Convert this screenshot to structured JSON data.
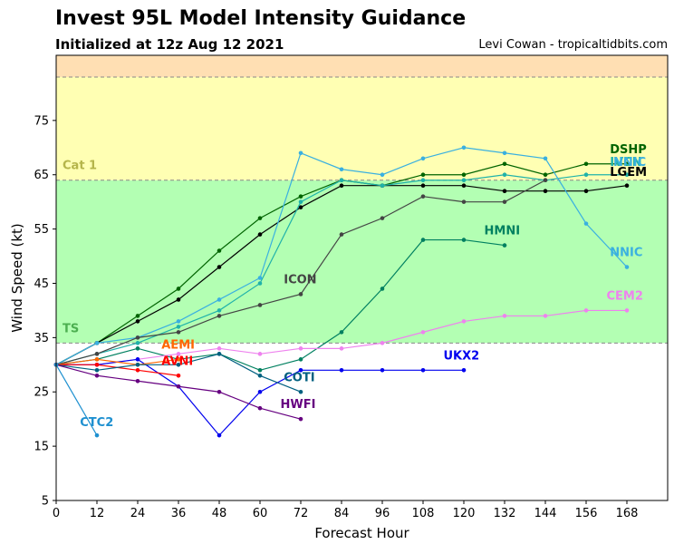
{
  "header": {
    "title": "Invest 95L Model Intensity Guidance",
    "subtitle": "Initialized at 12z Aug 12 2021",
    "credit": "Levi Cowan - tropicaltidbits.com"
  },
  "chart_data": {
    "type": "line",
    "xlabel": "Forecast Hour",
    "ylabel": "Wind Speed (kt)",
    "xlim": [
      0,
      180
    ],
    "ylim": [
      5,
      87
    ],
    "xticks": [
      0,
      12,
      24,
      36,
      48,
      60,
      72,
      84,
      96,
      108,
      120,
      132,
      144,
      156,
      168
    ],
    "yticks": [
      5,
      15,
      25,
      35,
      45,
      55,
      65,
      75
    ],
    "grid": false,
    "bands": [
      {
        "name": "TS",
        "from": 34,
        "to": 64,
        "color": "#b3ffb3",
        "label_color": "#4caf50"
      },
      {
        "name": "Cat 1",
        "from": 64,
        "to": 83,
        "color": "#ffffb3",
        "label_color": "#b5b54a"
      },
      {
        "name": "",
        "from": 83,
        "to": 87,
        "color": "#ffdfb3",
        "label_color": "#000000"
      }
    ],
    "series": [
      {
        "name": "DSHP",
        "color": "#006400",
        "x": [
          0,
          12,
          24,
          36,
          48,
          60,
          72,
          84,
          96,
          108,
          120,
          132,
          144,
          156,
          168
        ],
        "y": [
          30,
          34,
          39,
          44,
          51,
          57,
          61,
          64,
          63,
          65,
          65,
          67,
          65,
          67,
          67
        ]
      },
      {
        "name": "LGEM",
        "color": "#000000",
        "x": [
          0,
          12,
          24,
          36,
          48,
          60,
          72,
          84,
          96,
          108,
          120,
          132,
          144,
          156,
          168
        ],
        "y": [
          30,
          34,
          38,
          42,
          48,
          54,
          59,
          63,
          63,
          63,
          63,
          62,
          62,
          62,
          63
        ]
      },
      {
        "name": "IVCN",
        "color": "#20b2aa",
        "x": [
          0,
          12,
          24,
          36,
          48,
          60,
          72,
          84,
          96,
          108,
          120,
          132,
          144,
          156,
          168
        ],
        "y": [
          30,
          32,
          34,
          37,
          40,
          45,
          60,
          64,
          63,
          64,
          64,
          65,
          64,
          65,
          65
        ]
      },
      {
        "name": "NNIC",
        "color": "#3ab0e0",
        "x": [
          0,
          12,
          24,
          36,
          48,
          60,
          72,
          84,
          96,
          108,
          120,
          132,
          144,
          156,
          168
        ],
        "y": [
          30,
          34,
          35,
          38,
          42,
          46,
          69,
          66,
          65,
          68,
          70,
          69,
          68,
          56,
          48
        ]
      },
      {
        "name": "ICON",
        "color": "#444444",
        "x": [
          0,
          12,
          24,
          36,
          48,
          60,
          72,
          84,
          96,
          108,
          120,
          132,
          144
        ],
        "y": [
          30,
          32,
          35,
          36,
          39,
          41,
          43,
          54,
          57,
          61,
          60,
          60,
          64
        ]
      },
      {
        "name": "HMNI",
        "color": "#008060",
        "x": [
          0,
          12,
          24,
          36,
          48,
          60,
          72,
          84,
          96,
          108,
          120,
          132
        ],
        "y": [
          30,
          31,
          33,
          31,
          32,
          29,
          31,
          36,
          44,
          53,
          53,
          52
        ]
      },
      {
        "name": "CEM2",
        "color": "#ee82ee",
        "x": [
          0,
          12,
          24,
          36,
          48,
          60,
          72,
          84,
          96,
          108,
          120,
          132,
          144,
          156,
          168
        ],
        "y": [
          30,
          30,
          31,
          32,
          33,
          32,
          33,
          33,
          34,
          36,
          38,
          39,
          39,
          40,
          40
        ]
      },
      {
        "name": "UKX2",
        "color": "#0000ee",
        "x": [
          0,
          12,
          24,
          36,
          48,
          60,
          72,
          84,
          96,
          108,
          120
        ],
        "y": [
          30,
          30,
          31,
          26,
          17,
          25,
          29,
          29,
          29,
          29,
          29
        ]
      },
      {
        "name": "AEMI",
        "color": "#ff6600",
        "x": [
          0,
          12,
          24,
          36
        ],
        "y": [
          30,
          31,
          30,
          31
        ]
      },
      {
        "name": "AVNI",
        "color": "#ff0000",
        "x": [
          0,
          12,
          24,
          36
        ],
        "y": [
          30,
          30,
          29,
          28
        ]
      },
      {
        "name": "COTI",
        "color": "#006080",
        "x": [
          0,
          12,
          24,
          36,
          48,
          60,
          72
        ],
        "y": [
          30,
          29,
          30,
          30,
          32,
          28,
          25
        ]
      },
      {
        "name": "HWFI",
        "color": "#660080",
        "x": [
          0,
          12,
          24,
          36,
          48,
          60,
          72
        ],
        "y": [
          30,
          28,
          27,
          26,
          25,
          22,
          20
        ]
      },
      {
        "name": "CTC2",
        "color": "#1e90d0",
        "x": [
          0,
          12
        ],
        "y": [
          30,
          17
        ]
      }
    ],
    "labels": [
      {
        "text": "DSHP",
        "color": "#006400",
        "x": 163,
        "y": 69
      },
      {
        "text": "IVCN",
        "color": "#20b2aa",
        "x": 163,
        "y": 66.6
      },
      {
        "text": "NNIC",
        "color": "#3ab0e0",
        "x": 164,
        "y": 66.6
      },
      {
        "text": "LGEM",
        "color": "#000000",
        "x": 163,
        "y": 64.8
      },
      {
        "text": "HMNI",
        "color": "#008060",
        "x": 126,
        "y": 54
      },
      {
        "text": "NNIC",
        "color": "#3ab0e0",
        "x": 163,
        "y": 50
      },
      {
        "text": "ICON",
        "color": "#444444",
        "x": 67,
        "y": 45
      },
      {
        "text": "CEM2",
        "color": "#ee82ee",
        "x": 162,
        "y": 42
      },
      {
        "text": "AEMI",
        "color": "#ff6600",
        "x": 31,
        "y": 33
      },
      {
        "text": "AVNI",
        "color": "#ff0000",
        "x": 31,
        "y": 30
      },
      {
        "text": "UKX2",
        "color": "#0000ee",
        "x": 114,
        "y": 31
      },
      {
        "text": "COTI",
        "color": "#006080",
        "x": 67,
        "y": 27
      },
      {
        "text": "HWFI",
        "color": "#660080",
        "x": 66,
        "y": 22
      },
      {
        "text": "CTC2",
        "color": "#1e90d0",
        "x": 7,
        "y": 18.7
      }
    ]
  }
}
